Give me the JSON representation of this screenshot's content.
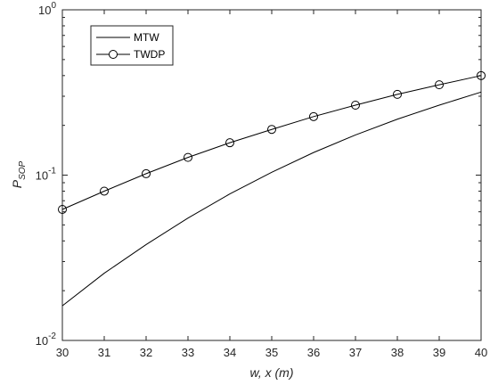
{
  "chart_data": {
    "type": "line",
    "xlabel": "w, x (m)",
    "ylabel": "P",
    "ylabel_sub": "SOP",
    "yscale": "log",
    "xlim": [
      30,
      40
    ],
    "ylim": [
      0.01,
      1
    ],
    "xticks": [
      30,
      31,
      32,
      33,
      34,
      35,
      36,
      37,
      38,
      39,
      40
    ],
    "yticks": [
      {
        "value": 0.01,
        "base": "10",
        "exp": "-2"
      },
      {
        "value": 0.1,
        "base": "10",
        "exp": "-1"
      },
      {
        "value": 1,
        "base": "10",
        "exp": "0"
      }
    ],
    "grid": false,
    "legend_position": "top-left",
    "x": [
      30,
      31,
      32,
      33,
      34,
      35,
      36,
      37,
      38,
      39,
      40
    ],
    "series": [
      {
        "name": "MTW",
        "marker": "none",
        "color": "#000000",
        "values": [
          0.0162,
          0.0255,
          0.038,
          0.055,
          0.077,
          0.104,
          0.137,
          0.175,
          0.218,
          0.265,
          0.318
        ]
      },
      {
        "name": "TWDP",
        "marker": "circle",
        "color": "#000000",
        "values": [
          0.062,
          0.08,
          0.102,
          0.128,
          0.157,
          0.189,
          0.226,
          0.265,
          0.308,
          0.352,
          0.4
        ]
      }
    ]
  }
}
